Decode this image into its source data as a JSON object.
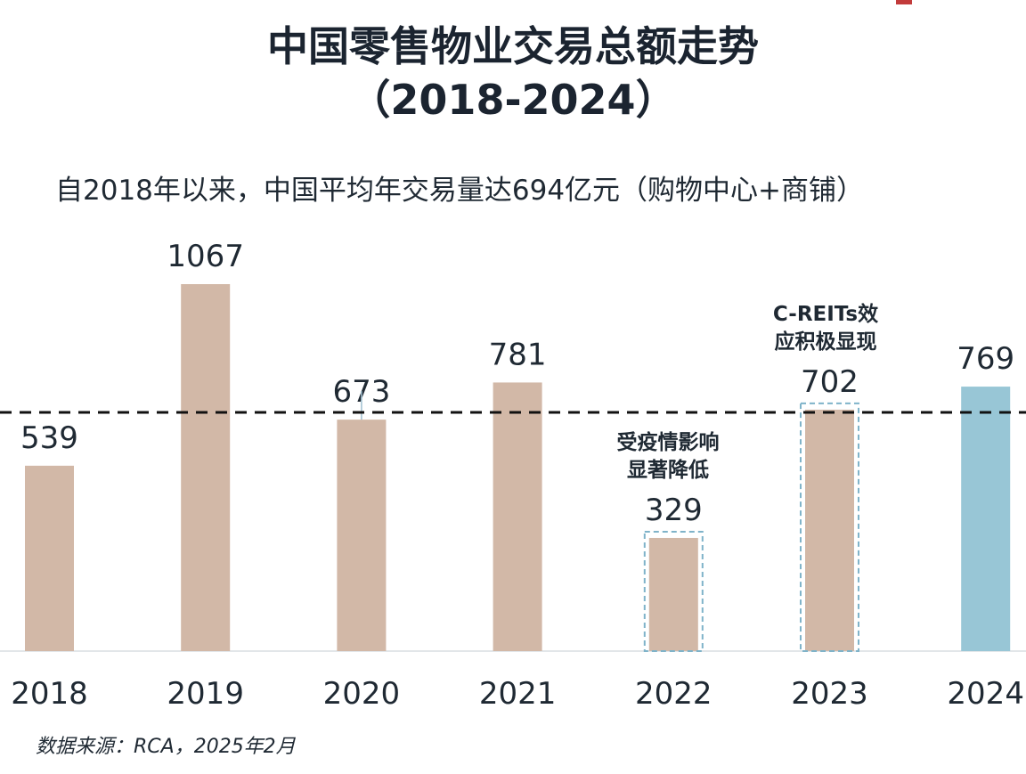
{
  "title": {
    "line1": "中国零售物业交易总额走势",
    "line2": "（2018-2024）"
  },
  "subtitle": "自2018年以来，中国平均年交易量达694亿元（购物中心+商铺）",
  "source": "数据来源：RCA，2025年2月",
  "colors": {
    "bar_default": "#d2b8a7",
    "bar_highlight": "#98c6d6",
    "average_line": "#111111",
    "highlight_box": "#7fb3c9"
  },
  "chart_data": {
    "type": "bar",
    "categories": [
      "2018",
      "2019",
      "2020",
      "2021",
      "2022",
      "2023",
      "2024"
    ],
    "values": [
      539,
      1067,
      673,
      781,
      329,
      702,
      769
    ],
    "value_labels": [
      "539",
      "1067",
      "673",
      "781",
      "329",
      "702",
      "769"
    ],
    "title": "中国零售物业交易总额走势（2018-2024）",
    "subtitle": "自2018年以来，中国平均年交易量达694亿元（购物中心+商铺）",
    "average": 694,
    "ylim": [
      0,
      1067
    ],
    "grid": false,
    "highlight_category": "2024",
    "boxed_categories": [
      "2022",
      "2023"
    ],
    "annotations": [
      {
        "category": "2022",
        "lines": [
          "受疫情影响",
          "显著降低"
        ]
      },
      {
        "category": "2023",
        "lines": [
          "C-REITs效",
          "应积极显现"
        ]
      }
    ]
  }
}
